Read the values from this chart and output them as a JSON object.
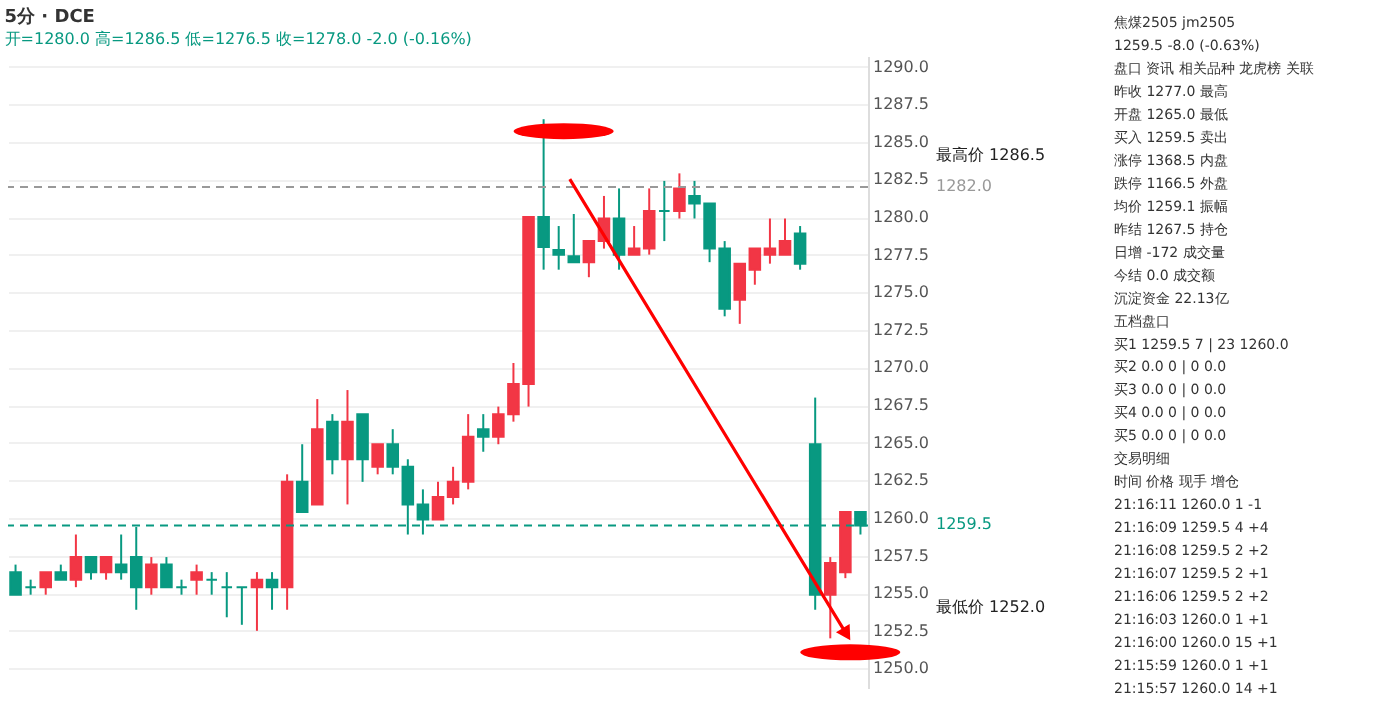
{
  "chart_data": [
    {
      "type": "candlestick",
      "title": "5分 · DCE",
      "subtitle": "开=1280.0 高=1286.5 低=1276.5 收=1278.0 -2.0 (-0.16%)",
      "categories": [
        null,
        null,
        null,
        null,
        null,
        null,
        null,
        null,
        null,
        null,
        null,
        null,
        null,
        null,
        null,
        null,
        null,
        null,
        null,
        null,
        null,
        null,
        null,
        null,
        null,
        null,
        null,
        null,
        null,
        null,
        null,
        null,
        null,
        null,
        null,
        null,
        null,
        null,
        null,
        null,
        null,
        null,
        null,
        null,
        null,
        null,
        null,
        null,
        null,
        null,
        null,
        null,
        null,
        null,
        null,
        null,
        null
      ],
      "ohlc": [
        [
          1256.4,
          1256.9,
          1254.9,
          1254.9
        ],
        [
          1255.4,
          1255.9,
          1254.9,
          1255.4
        ],
        [
          1255.4,
          1256.4,
          1254.9,
          1256.4
        ],
        [
          1256.4,
          1256.9,
          1255.9,
          1255.9
        ],
        [
          1255.9,
          1258.9,
          1255.4,
          1257.4
        ],
        [
          1257.4,
          1257.4,
          1255.9,
          1256.4
        ],
        [
          1256.4,
          1257.4,
          1255.9,
          1257.4
        ],
        [
          1256.9,
          1258.9,
          1255.9,
          1256.4
        ],
        [
          1257.4,
          1259.4,
          1253.9,
          1255.4
        ],
        [
          1255.4,
          1257.4,
          1254.9,
          1256.9
        ],
        [
          1256.9,
          1257.4,
          1255.4,
          1255.4
        ],
        [
          1255.4,
          1255.9,
          1254.9,
          1255.4
        ],
        [
          1255.9,
          1256.9,
          1254.9,
          1256.4
        ],
        [
          1255.9,
          1256.4,
          1254.9,
          1255.9
        ],
        [
          1255.4,
          1256.4,
          1253.4,
          1255.4
        ],
        [
          1255.4,
          1255.4,
          1252.9,
          1255.4
        ],
        [
          1255.4,
          1256.4,
          1252.5,
          1255.9
        ],
        [
          1255.9,
          1256.4,
          1253.9,
          1255.4
        ],
        [
          1255.4,
          1262.9,
          1253.9,
          1262.4
        ],
        [
          1262.4,
          1264.9,
          1260.4,
          1260.4
        ],
        [
          1260.9,
          1267.9,
          1260.9,
          1265.9
        ],
        [
          1266.4,
          1266.9,
          1262.9,
          1263.9
        ],
        [
          1263.9,
          1268.5,
          1260.9,
          1266.4
        ],
        [
          1266.9,
          1266.9,
          1262.4,
          1263.9
        ],
        [
          1263.4,
          1264.9,
          1262.9,
          1264.9
        ],
        [
          1264.9,
          1265.9,
          1262.9,
          1263.4
        ],
        [
          1263.4,
          1263.9,
          1258.9,
          1260.9
        ],
        [
          1260.9,
          1261.9,
          1258.9,
          1259.9
        ],
        [
          1259.9,
          1262.4,
          1259.9,
          1261.4
        ],
        [
          1261.4,
          1263.4,
          1260.9,
          1262.4
        ],
        [
          1262.4,
          1266.9,
          1261.9,
          1265.4
        ],
        [
          1265.9,
          1266.9,
          1264.4,
          1265.4
        ],
        [
          1265.4,
          1267.4,
          1264.9,
          1266.9
        ],
        [
          1266.9,
          1270.3,
          1266.4,
          1268.9
        ],
        [
          1268.9,
          1280.0,
          1267.4,
          1280.0
        ],
        [
          1280.0,
          1286.5,
          1276.5,
          1278.0
        ],
        [
          1277.8,
          1279.4,
          1276.5,
          1277.5
        ],
        [
          1277.4,
          1280.2,
          1277.0,
          1277.0
        ],
        [
          1277.0,
          1278.4,
          1276.0,
          1278.4
        ],
        [
          1278.4,
          1281.4,
          1277.9,
          1279.9
        ],
        [
          1279.9,
          1281.9,
          1276.5,
          1277.5
        ],
        [
          1277.5,
          1279.4,
          1277.5,
          1277.9
        ],
        [
          1277.9,
          1281.9,
          1277.5,
          1280.4
        ],
        [
          1280.4,
          1282.4,
          1278.4,
          1280.4
        ],
        [
          1280.4,
          1282.9,
          1279.9,
          1281.9
        ],
        [
          1281.4,
          1282.4,
          1279.9,
          1280.9
        ],
        [
          1280.9,
          1280.9,
          1277.0,
          1277.9
        ],
        [
          1277.9,
          1278.4,
          1273.4,
          1273.9
        ],
        [
          1274.5,
          1276.9,
          1272.9,
          1276.9
        ],
        [
          1276.5,
          1277.9,
          1275.5,
          1277.9
        ],
        [
          1277.5,
          1279.9,
          1276.9,
          1277.9
        ],
        [
          1277.5,
          1279.9,
          1277.5,
          1278.4
        ],
        [
          1278.9,
          1279.4,
          1276.5,
          1276.9
        ],
        [
          1264.9,
          1268.0,
          1253.9,
          1254.9
        ],
        [
          1254.9,
          1257.4,
          1252.0,
          1257.0
        ],
        [
          1256.4,
          1260.4,
          1256.0,
          1260.4
        ],
        [
          1260.4,
          1260.4,
          1258.9,
          1259.5
        ]
      ],
      "colors": [
        "#089981",
        "#089981",
        "#f23645",
        "#089981",
        "#f23645",
        "#089981",
        "#f23645",
        "#089981",
        "#089981",
        "#f23645",
        "#089981",
        "#089981",
        "#f23645",
        "#089981",
        "#089981",
        "#089981",
        "#f23645",
        "#089981",
        "#f23645",
        "#089981",
        "#f23645",
        "#089981",
        "#f23645",
        "#089981",
        "#f23645",
        "#089981",
        "#089981",
        "#089981",
        "#f23645",
        "#f23645",
        "#f23645",
        "#089981",
        "#f23645",
        "#f23645",
        "#f23645",
        "#089981",
        "#089981",
        "#089981",
        "#f23645",
        "#f23645",
        "#089981",
        "#f23645",
        "#f23645",
        "#089981",
        "#f23645",
        "#089981",
        "#089981",
        "#089981",
        "#f23645",
        "#f23645",
        "#f23645",
        "#f23645",
        "#089981",
        "#089981",
        "#f23645",
        "#f23645",
        "#089981"
      ],
      "ylim": [
        1248.7,
        1290.7
      ],
      "yticks": [
        {
          "value": 1250,
          "label": "1250.0"
        },
        {
          "value": 1252.5,
          "label": "1252.5"
        },
        {
          "value": 1255,
          "label": "1255.0"
        },
        {
          "value": 1257.5,
          "label": "1257.5"
        },
        {
          "value": 1260,
          "label": "1260.0"
        },
        {
          "value": 1262.5,
          "label": "1262.5"
        },
        {
          "value": 1265,
          "label": "1265.0"
        },
        {
          "value": 1267.5,
          "label": "1267.5"
        },
        {
          "value": 1270,
          "label": "1270.0"
        },
        {
          "value": 1272.5,
          "label": "1272.5"
        },
        {
          "value": 1275,
          "label": "1275.0"
        },
        {
          "value": 1277.5,
          "label": "1277.5"
        },
        {
          "value": 1280,
          "label": "1280.0"
        },
        {
          "value": 1282.5,
          "label": "1282.5"
        },
        {
          "value": 1285,
          "label": "1285.0"
        },
        {
          "value": 1287.5,
          "label": "1287.5"
        },
        {
          "value": 1290,
          "label": "1290.0"
        }
      ],
      "grid": "y",
      "ref_lines": [
        {
          "axis": "y",
          "value": 1282.0,
          "label": "1282.0",
          "color": "#999999",
          "line_style": "dashed"
        },
        {
          "axis": "y",
          "value": 1259.5,
          "label": "1259.5",
          "color": "#089981",
          "line_style": "dashed"
        }
      ],
      "annotations": [
        "最高价 1286.5",
        "最低价 1252.0"
      ]
    },
    {
      "type": "other",
      "annotations": [
        "焦煤2505 jm2505",
        "1259.5 -8.0 (-0.63%)",
        "盘口 资讯 相关品种 龙虎榜 关联",
        "昨收 1277.0 最高",
        "开盘 1265.0 最低",
        "买入 1259.5 卖出",
        "涨停 1368.5 内盘",
        "跌停 1166.5 外盘",
        "均价 1259.1 振幅",
        "昨结 1267.5 持仓",
        "日增 -172 成交量",
        "今结 0.0 成交额",
        "沉淀资金 22.13亿",
        "五档盘口",
        "买1 1259.5 7 | 23 1260.0",
        "买2 0.0 0 | 0 0.0",
        "买3 0.0 0 | 0 0.0",
        "买4 0.0 0 | 0 0.0",
        "买5 0.0 0 | 0 0.0",
        "交易明细",
        "时间 价格 现手 增仓",
        "21:16:11 1260.0 1 -1",
        "21:16:09 1259.5 4 +4",
        "21:16:08 1259.5 2 +2",
        "21:16:07 1259.5 2 +1",
        "21:16:06 1259.5 2 +2",
        "21:16:03 1260.0 1 +1",
        "21:16:00 1260.0 15 +1",
        "21:15:59 1260.0 1 +1",
        "21:15:57 1260.0 14 +1"
      ]
    }
  ]
}
